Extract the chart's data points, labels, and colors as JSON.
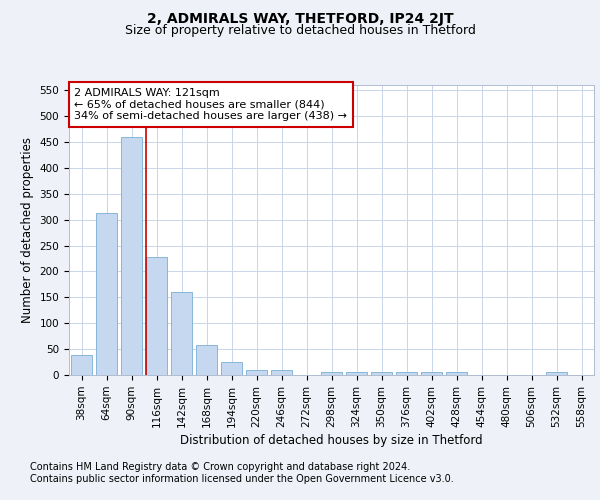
{
  "title": "2, ADMIRALS WAY, THETFORD, IP24 2JT",
  "subtitle": "Size of property relative to detached houses in Thetford",
  "xlabel": "Distribution of detached houses by size in Thetford",
  "ylabel": "Number of detached properties",
  "footnote1": "Contains HM Land Registry data © Crown copyright and database right 2024.",
  "footnote2": "Contains public sector information licensed under the Open Government Licence v3.0.",
  "categories": [
    "38sqm",
    "64sqm",
    "90sqm",
    "116sqm",
    "142sqm",
    "168sqm",
    "194sqm",
    "220sqm",
    "246sqm",
    "272sqm",
    "298sqm",
    "324sqm",
    "350sqm",
    "376sqm",
    "402sqm",
    "428sqm",
    "454sqm",
    "480sqm",
    "506sqm",
    "532sqm",
    "558sqm"
  ],
  "values": [
    38,
    312,
    460,
    228,
    160,
    57,
    25,
    10,
    10,
    0,
    5,
    5,
    5,
    5,
    5,
    5,
    0,
    0,
    0,
    5,
    0
  ],
  "bar_color": "#c5d8f0",
  "bar_edge_color": "#7bafd4",
  "annotation_line_color": "#cc0000",
  "annotation_text_line1": "2 ADMIRALS WAY: 121sqm",
  "annotation_text_line2": "← 65% of detached houses are smaller (844)",
  "annotation_text_line3": "34% of semi-detached houses are larger (438) →",
  "annotation_box_color": "#cc0000",
  "ylim": [
    0,
    560
  ],
  "yticks": [
    0,
    50,
    100,
    150,
    200,
    250,
    300,
    350,
    400,
    450,
    500,
    550
  ],
  "bg_color": "#eef2f8",
  "plot_bg_color": "#ffffff",
  "grid_color": "#c8d4e8",
  "title_fontsize": 10,
  "subtitle_fontsize": 9,
  "axis_label_fontsize": 8.5,
  "tick_fontsize": 7.5,
  "annotation_fontsize": 8,
  "footnote_fontsize": 7
}
